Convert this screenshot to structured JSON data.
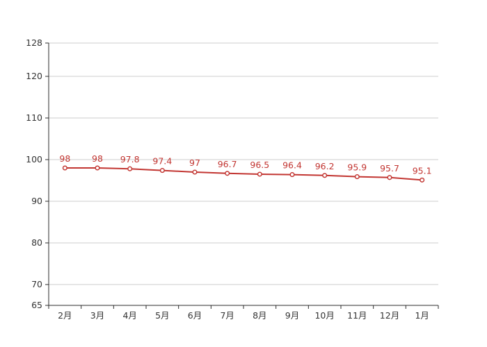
{
  "chart_data": {
    "type": "line",
    "title": "",
    "xlabel": "",
    "ylabel": "",
    "categories": [
      "2月",
      "3月",
      "4月",
      "5月",
      "6月",
      "7月",
      "8月",
      "9月",
      "10月",
      "11月",
      "12月",
      "1月"
    ],
    "series": [
      {
        "name": "series-1",
        "values": [
          98,
          98,
          97.8,
          97.4,
          97,
          96.7,
          96.5,
          96.4,
          96.2,
          95.9,
          95.7,
          95.1
        ],
        "value_labels": [
          "98",
          "98",
          "97.8",
          "97.4",
          "97",
          "96.7",
          "96.5",
          "96.4",
          "96.2",
          "95.9",
          "95.7",
          "95.1"
        ]
      }
    ],
    "ylim": [
      65,
      128
    ],
    "y_ticks": [
      65,
      70,
      80,
      90,
      100,
      110,
      120,
      128
    ],
    "grid": true,
    "legend_position": "none",
    "colors": {
      "line": "#c23531",
      "marker_fill": "#ffffff",
      "marker_stroke": "#c23531",
      "value_label": "#c23531",
      "grid_line": "#cccccc",
      "axis_line": "#2b2b2b",
      "axis_label": "#333333",
      "background": "#ffffff"
    }
  }
}
